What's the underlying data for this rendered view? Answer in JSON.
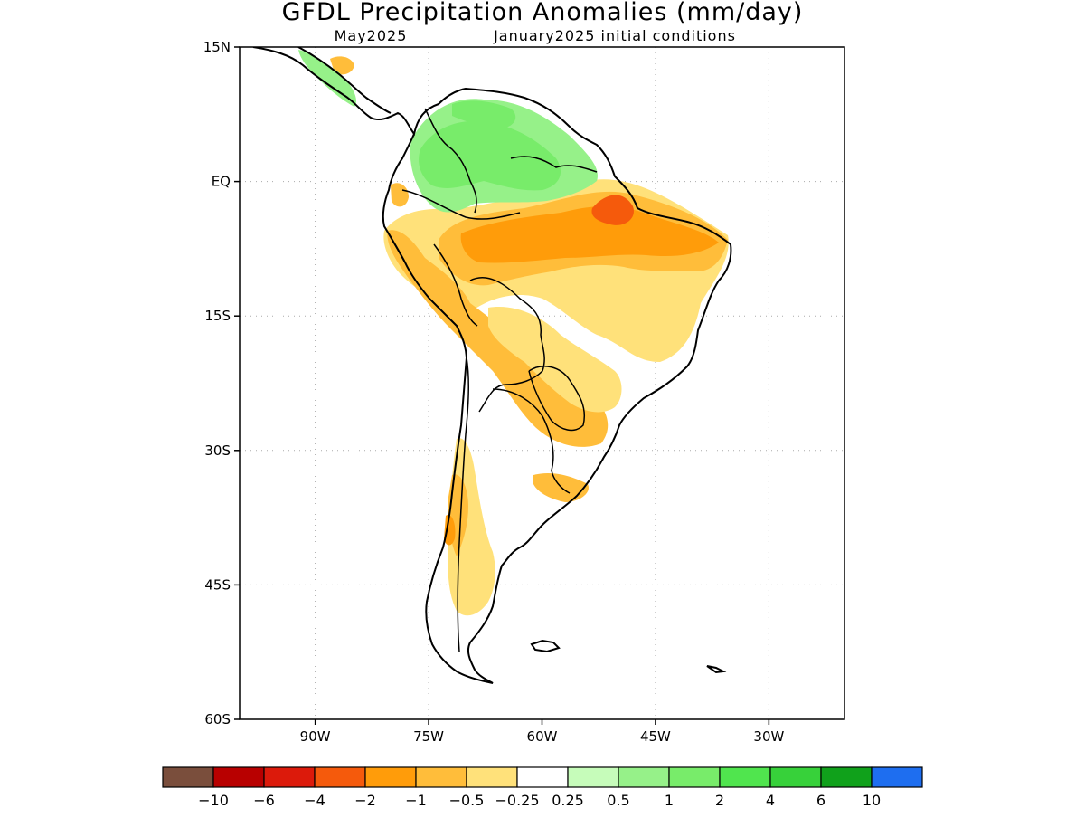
{
  "title": "GFDL Precipitation Anomalies (mm/day)",
  "subtitle_left": "May2025",
  "subtitle_right": "January2025 initial conditions",
  "lat_ticks": [
    {
      "label": "15N",
      "value": 15
    },
    {
      "label": "EQ",
      "value": 0
    },
    {
      "label": "15S",
      "value": -15
    },
    {
      "label": "30S",
      "value": -30
    },
    {
      "label": "45S",
      "value": -45
    },
    {
      "label": "60S",
      "value": -60
    }
  ],
  "lon_ticks": [
    {
      "label": "90W",
      "value": -90
    },
    {
      "label": "75W",
      "value": -75
    },
    {
      "label": "60W",
      "value": -60
    },
    {
      "label": "45W",
      "value": -45
    },
    {
      "label": "30W",
      "value": -30
    }
  ],
  "map_extent": {
    "lon": [
      -100,
      -20
    ],
    "lat": [
      -60,
      15
    ]
  },
  "colorbar": {
    "colors": [
      "#7a4e3c",
      "#b80000",
      "#dc1a0b",
      "#f55a0c",
      "#ff9c0a",
      "#ffbd3a",
      "#ffe17a",
      "#ffffff",
      "#c6fcba",
      "#96f189",
      "#78ec6a",
      "#50e54e",
      "#37d13a",
      "#10a11b",
      "#1e6ef0"
    ],
    "labels": [
      "−10",
      "−6",
      "−4",
      "−2",
      "−1",
      "−0.5",
      "−0.25",
      "0.25",
      "0.5",
      "1",
      "2",
      "4",
      "6",
      "10"
    ]
  }
}
